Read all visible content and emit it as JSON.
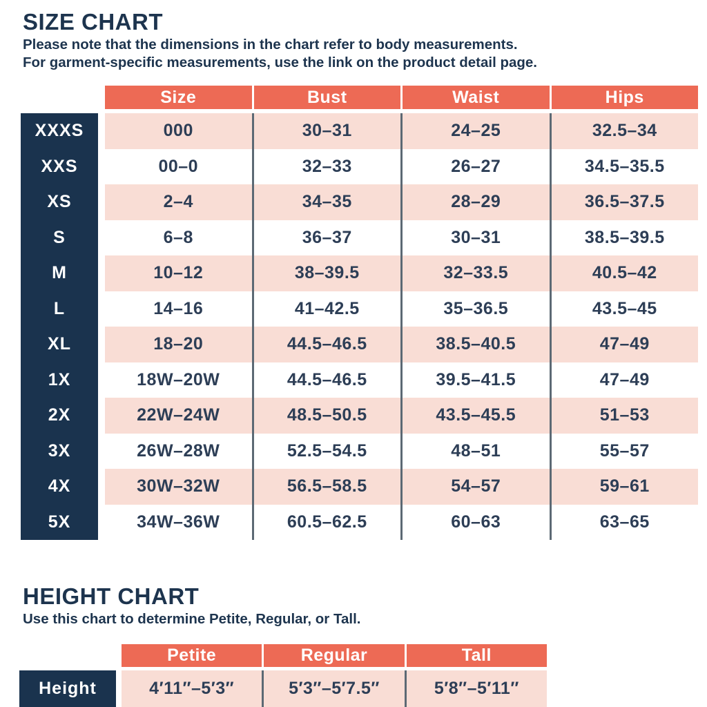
{
  "colors": {
    "coral": "#ED6A55",
    "pink": "#F9DDD5",
    "navy": "#1A334E",
    "ink": "#2D3E56",
    "slate": "#5C6974"
  },
  "size_chart": {
    "title": "SIZE CHART",
    "subtitle_line1": "Please note that the dimensions in the chart refer to body measurements.",
    "subtitle_line2": "For garment-specific measurements, use the link on the product detail page.",
    "columns": [
      "Size",
      "Bust",
      "Waist",
      "Hips"
    ],
    "rows": [
      {
        "label": "XXXS",
        "cells": [
          "000",
          "30–31",
          "24–25",
          "32.5–34"
        ]
      },
      {
        "label": "XXS",
        "cells": [
          "00–0",
          "32–33",
          "26–27",
          "34.5–35.5"
        ]
      },
      {
        "label": "XS",
        "cells": [
          "2–4",
          "34–35",
          "28–29",
          "36.5–37.5"
        ]
      },
      {
        "label": "S",
        "cells": [
          "6–8",
          "36–37",
          "30–31",
          "38.5–39.5"
        ]
      },
      {
        "label": "M",
        "cells": [
          "10–12",
          "38–39.5",
          "32–33.5",
          "40.5–42"
        ]
      },
      {
        "label": "L",
        "cells": [
          "14–16",
          "41–42.5",
          "35–36.5",
          "43.5–45"
        ]
      },
      {
        "label": "XL",
        "cells": [
          "18–20",
          "44.5–46.5",
          "38.5–40.5",
          "47–49"
        ]
      },
      {
        "label": "1X",
        "cells": [
          "18W–20W",
          "44.5–46.5",
          "39.5–41.5",
          "47–49"
        ]
      },
      {
        "label": "2X",
        "cells": [
          "22W–24W",
          "48.5–50.5",
          "43.5–45.5",
          "51–53"
        ]
      },
      {
        "label": "3X",
        "cells": [
          "26W–28W",
          "52.5–54.5",
          "48–51",
          "55–57"
        ]
      },
      {
        "label": "4X",
        "cells": [
          "30W–32W",
          "56.5–58.5",
          "54–57",
          "59–61"
        ]
      },
      {
        "label": "5X",
        "cells": [
          "34W–36W",
          "60.5–62.5",
          "60–63",
          "63–65"
        ]
      }
    ]
  },
  "height_chart": {
    "title": "HEIGHT CHART",
    "subtitle": "Use this chart to determine Petite, Regular, or Tall.",
    "columns": [
      "Petite",
      "Regular",
      "Tall"
    ],
    "row_label": "Height",
    "values": [
      "4′11″–5′3″",
      "5′3″–5′7.5″",
      "5′8″–5′11″"
    ]
  }
}
